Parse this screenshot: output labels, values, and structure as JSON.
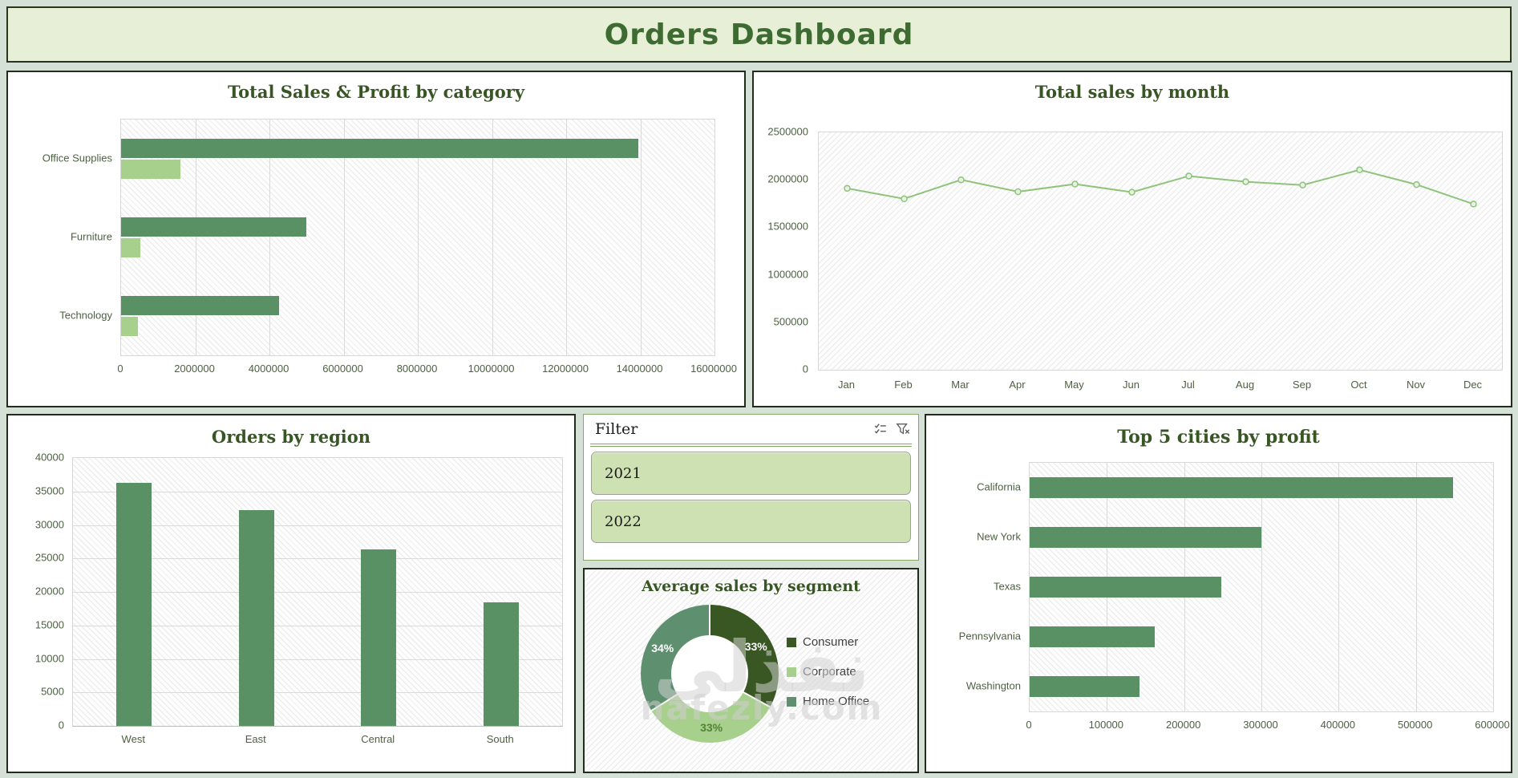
{
  "page": {
    "title": "Orders Dashboard",
    "theme": {
      "background": "#d5e1d6",
      "banner_fill": "#e7efd6",
      "title_color": "#3d6b31",
      "chart_title_color": "#375623",
      "bar_dark_green": "#5a9164",
      "bar_light_green": "#a8d08d",
      "line_green": "#8fc37c",
      "axis_text_color": "#4d6142"
    }
  },
  "filter": {
    "title": "Filter",
    "icons": [
      "multi-select-icon",
      "clear-filter-icon"
    ],
    "buttons": [
      "2021",
      "2022"
    ]
  },
  "watermark": {
    "arabic": "نفذلي",
    "domain": "nafezly.com"
  },
  "chart_data": [
    {
      "key": "sales_profit_by_category",
      "type": "bar",
      "orientation": "horizontal",
      "title": "Total Sales  & Profit by category",
      "categories": [
        "Office Supplies",
        "Furniture",
        "Technology"
      ],
      "series": [
        {
          "name": "Sales",
          "color": "#5a9164",
          "values": [
            13950000,
            5000000,
            4250000
          ]
        },
        {
          "name": "Profit",
          "color": "#a8d08d",
          "values": [
            1600000,
            520000,
            460000
          ]
        }
      ],
      "xlim": [
        0,
        16000000
      ],
      "xticks": [
        0,
        2000000,
        4000000,
        6000000,
        8000000,
        10000000,
        12000000,
        14000000,
        16000000
      ],
      "grid": "vertical",
      "legend": "none"
    },
    {
      "key": "total_sales_by_month",
      "type": "line",
      "title": "Total sales by month",
      "categories": [
        "Jan",
        "Feb",
        "Mar",
        "Apr",
        "May",
        "Jun",
        "Jul",
        "Aug",
        "Sep",
        "Oct",
        "Nov",
        "Dec"
      ],
      "values": [
        1910000,
        1800000,
        2000000,
        1875000,
        1955000,
        1870000,
        2040000,
        1980000,
        1945000,
        2105000,
        1950000,
        1745000
      ],
      "ylim": [
        0,
        2500000
      ],
      "yticks": [
        0,
        500000,
        1000000,
        1500000,
        2000000,
        2500000
      ],
      "line_color": "#8fc37c",
      "marker_fill": "#e8f2e2",
      "grid": "none",
      "legend": "none"
    },
    {
      "key": "orders_by_region",
      "type": "bar",
      "orientation": "vertical",
      "title": "Orders by region",
      "categories": [
        "West",
        "East",
        "Central",
        "South"
      ],
      "values": [
        36300,
        32200,
        26300,
        18400
      ],
      "bar_color": "#5a9164",
      "ylim": [
        0,
        40000
      ],
      "yticks": [
        0,
        5000,
        10000,
        15000,
        20000,
        25000,
        30000,
        35000,
        40000
      ],
      "grid": "horizontal",
      "legend": "none"
    },
    {
      "key": "avg_sales_by_segment",
      "type": "pie",
      "subtype": "donut",
      "title": "Average sales by segment",
      "slices": [
        {
          "label": "Consumer",
          "pct": 33,
          "color": "#385723",
          "label_color": "#ffffff"
        },
        {
          "label": "Corporate",
          "pct": 33,
          "color": "#a8d08d",
          "label_color": "#538135"
        },
        {
          "label": "Home Office",
          "pct": 34,
          "color": "#5e9070",
          "label_color": "#ffffff"
        }
      ],
      "legend_position": "right"
    },
    {
      "key": "top5_cities_by_profit",
      "type": "bar",
      "orientation": "horizontal",
      "title": "Top 5 cities by profit",
      "categories": [
        "California",
        "New York",
        "Texas",
        "Pennsylvania",
        "Washington"
      ],
      "values": [
        548000,
        300000,
        248000,
        162000,
        142000
      ],
      "bar_color": "#5a9164",
      "xlim": [
        0,
        600000
      ],
      "xticks": [
        0,
        100000,
        200000,
        300000,
        400000,
        500000,
        600000
      ],
      "grid": "vertical",
      "legend": "none"
    }
  ]
}
